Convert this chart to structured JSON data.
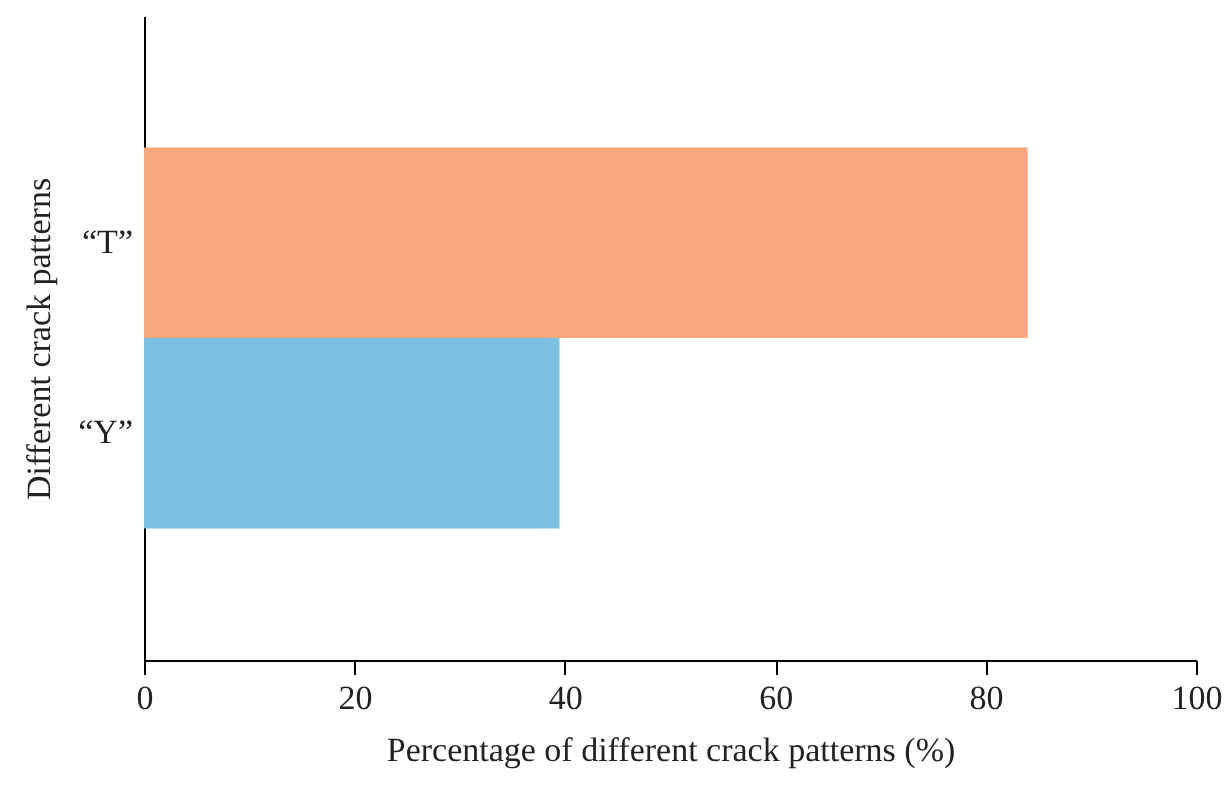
{
  "chart_data": {
    "type": "bar",
    "orientation": "horizontal",
    "xlabel": "Percentage of different crack patterns (%)",
    "ylabel": "Different crack patterns",
    "categories": [
      "“T”",
      "“Y”"
    ],
    "values": [
      84,
      39.5
    ],
    "colors": [
      "#f7a87c",
      "#7dc0e4"
    ],
    "xlim": [
      0,
      100
    ],
    "xticks": [
      0,
      20,
      40,
      60,
      80,
      100
    ],
    "grid": false
  }
}
